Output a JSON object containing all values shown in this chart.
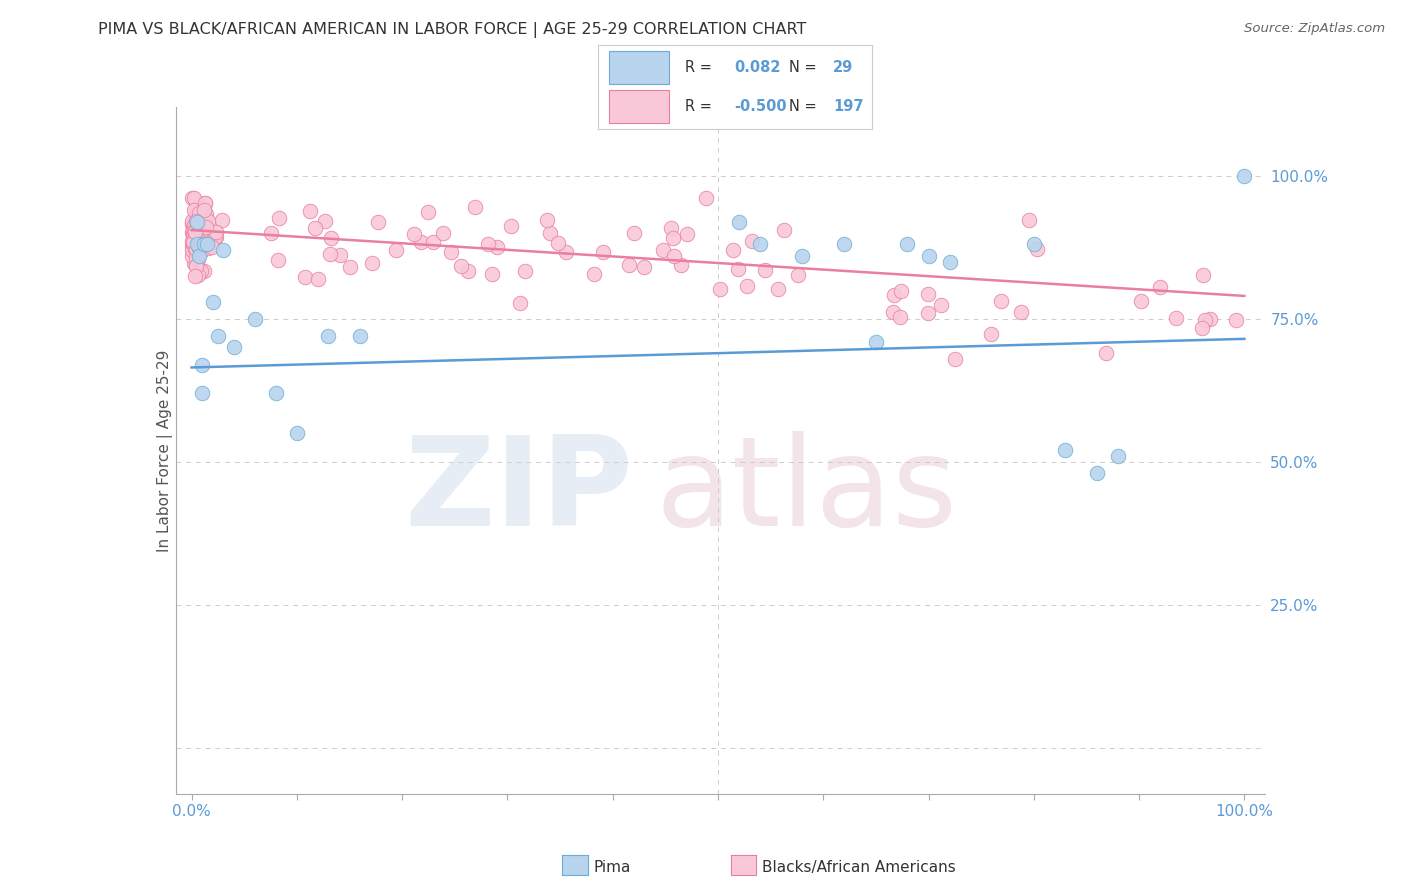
{
  "title": "PIMA VS BLACK/AFRICAN AMERICAN IN LABOR FORCE | AGE 25-29 CORRELATION CHART",
  "source": "Source: ZipAtlas.com",
  "ylabel": "In Labor Force | Age 25-29",
  "right_yticks": [
    "100.0%",
    "75.0%",
    "50.0%",
    "25.0%"
  ],
  "right_ytick_vals": [
    1.0,
    0.75,
    0.5,
    0.25
  ],
  "legend_r_pima": "0.082",
  "legend_n_pima": "29",
  "legend_r_black": "-0.500",
  "legend_n_black": "197",
  "color_pima_fill": "#b8d4ee",
  "color_pima_edge": "#6aaed6",
  "color_pima_line": "#5b9bd5",
  "color_black_fill": "#f9c8d8",
  "color_black_edge": "#e87fa0",
  "color_black_line": "#e87fa0",
  "color_axis_text": "#5b9bd5",
  "color_title": "#333333",
  "color_grid": "#cccccc",
  "pima_trend_x": [
    0.0,
    1.0
  ],
  "pima_trend_y": [
    0.665,
    0.715
  ],
  "black_trend_x": [
    0.0,
    1.0
  ],
  "black_trend_y": [
    0.905,
    0.79
  ],
  "ylim_min": -0.08,
  "ylim_max": 1.12,
  "xlim_min": -0.015,
  "xlim_max": 1.02
}
